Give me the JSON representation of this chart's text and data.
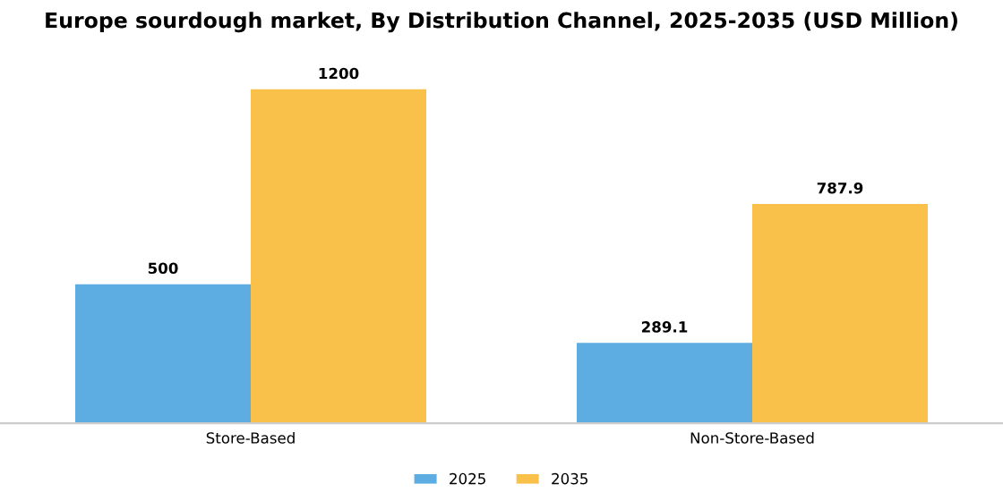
{
  "chart_data": {
    "type": "bar",
    "title": "Europe sourdough market, By Distribution Channel, 2025-2035 (USD Million)",
    "categories": [
      "Store-Based",
      "Non-Store-Based"
    ],
    "series": [
      {
        "name": "2025",
        "color": "#5dade2",
        "values": [
          500,
          289.1
        ]
      },
      {
        "name": "2035",
        "color": "#f9c04a",
        "values": [
          1200,
          787.9
        ]
      }
    ],
    "data_labels": true,
    "legend": "bottom",
    "grid": false
  }
}
